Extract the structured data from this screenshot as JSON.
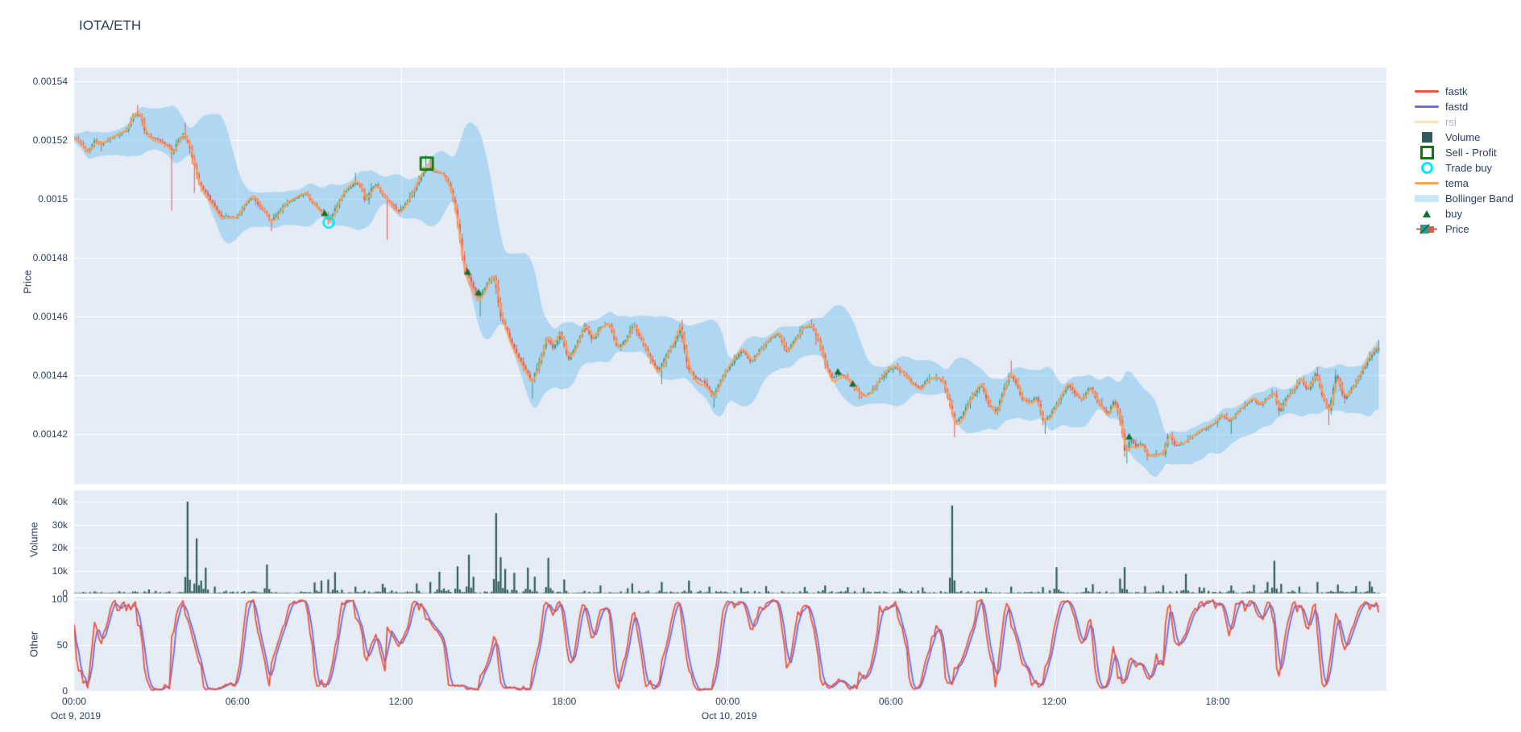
{
  "title": "IOTA/ETH",
  "colors": {
    "plot_bg": "#E5ECF6",
    "grid": "#FFFFFF",
    "text": "#2a3f5f",
    "candle_up": "#2F9E84",
    "candle_down": "#E4584B",
    "tema": "#FFA15A",
    "bollinger_fill": "rgba(126,195,238,0.52)",
    "volume_bar": "#2F5B5B",
    "fastk": "#EF553B",
    "fastd": "#6C6CE5",
    "buy_marker": "#15702B",
    "sell_profit_marker": "#067D06",
    "trade_buy_marker": "#00E8FF",
    "rsi_muted": "#FFE2B0"
  },
  "axes": {
    "price": {
      "label": "Price",
      "ticks": [
        {
          "v": 1540,
          "label": "0.00154"
        },
        {
          "v": 1520,
          "label": "0.00152"
        },
        {
          "v": 1500,
          "label": "0.0015"
        },
        {
          "v": 1480,
          "label": "0.00148"
        },
        {
          "v": 1460,
          "label": "0.00146"
        },
        {
          "v": 1440,
          "label": "0.00144"
        },
        {
          "v": 1420,
          "label": "0.00142"
        }
      ]
    },
    "volume": {
      "label": "Volume",
      "ticks": [
        {
          "v": 0,
          "label": "0"
        },
        {
          "v": 10000,
          "label": "10k"
        },
        {
          "v": 20000,
          "label": "20k"
        },
        {
          "v": 30000,
          "label": "30k"
        },
        {
          "v": 40000,
          "label": "40k"
        }
      ]
    },
    "other": {
      "label": "Other",
      "ticks": [
        {
          "v": 0,
          "label": "0"
        },
        {
          "v": 50,
          "label": "50"
        },
        {
          "v": 100,
          "label": "100"
        }
      ]
    },
    "x": {
      "ticks": [
        {
          "t": 0,
          "label": "00:00",
          "date": "Oct 9, 2019"
        },
        {
          "t": 6,
          "label": "06:00"
        },
        {
          "t": 12,
          "label": "12:00"
        },
        {
          "t": 18,
          "label": "18:00"
        },
        {
          "t": 24,
          "label": "00:00",
          "date": "Oct 10, 2019"
        },
        {
          "t": 30,
          "label": "06:00"
        },
        {
          "t": 36,
          "label": "12:00"
        },
        {
          "t": 42,
          "label": "18:00"
        }
      ]
    }
  },
  "legend": [
    {
      "label": "fastk",
      "swatch": "line",
      "color": "#EF553B"
    },
    {
      "label": "fastd",
      "swatch": "line",
      "color": "#6C6CE5"
    },
    {
      "label": "rsi",
      "swatch": "line",
      "color": "#FFE2B0",
      "muted": true
    },
    {
      "label": "Volume",
      "swatch": "square",
      "color": "#2F5B5B"
    },
    {
      "label": "Sell - Profit",
      "swatch": "square-open",
      "color": "#067D06"
    },
    {
      "label": "Trade buy",
      "swatch": "circle-open",
      "color": "#00E8FF"
    },
    {
      "label": "tema",
      "swatch": "line",
      "color": "#FFA15A"
    },
    {
      "label": "Bollinger Band",
      "swatch": "band",
      "color": "#C7E6F8"
    },
    {
      "label": "buy",
      "swatch": "triangle",
      "color": "#15702B"
    },
    {
      "label": "Price",
      "swatch": "candle",
      "color": "#2F9E84"
    }
  ],
  "chart_data": {
    "type": "candlestick-multi-panel",
    "pair": "IOTA/ETH",
    "timeframe_minutes": 5,
    "x_origin": "Oct 9, 2019 00:00",
    "x_range_hours": [
      0,
      47.92
    ],
    "price_unit_scale": 1e-06,
    "ylim_price": [
      1403,
      1546.5
    ],
    "ylim_volume": [
      0,
      45000
    ],
    "ylim_other": [
      0,
      105
    ],
    "panels": [
      "price",
      "volume",
      "other"
    ],
    "indicators": {
      "bollinger_period": 20,
      "bollinger_std": 2,
      "tema_period": 7,
      "stoch_k_period": 14,
      "stoch_d_period": 3
    },
    "price_anchors": [
      [
        0.0,
        1521
      ],
      [
        0.25,
        1519
      ],
      [
        0.5,
        1516
      ],
      [
        0.75,
        1520
      ],
      [
        1.0,
        1519
      ],
      [
        1.3,
        1521
      ],
      [
        1.6,
        1522
      ],
      [
        1.9,
        1524
      ],
      [
        2.2,
        1530
      ],
      [
        2.45,
        1529
      ],
      [
        2.6,
        1523
      ],
      [
        2.9,
        1521
      ],
      [
        3.2,
        1520
      ],
      [
        3.45,
        1518
      ],
      [
        3.6,
        1515
      ],
      [
        3.8,
        1519
      ],
      [
        4.0,
        1522
      ],
      [
        4.2,
        1519
      ],
      [
        4.4,
        1512
      ],
      [
        4.6,
        1505
      ],
      [
        4.8,
        1503
      ],
      [
        5.0,
        1500
      ],
      [
        5.2,
        1497
      ],
      [
        5.4,
        1494
      ],
      [
        5.6,
        1495
      ],
      [
        5.9,
        1494
      ],
      [
        6.1,
        1496
      ],
      [
        6.35,
        1499
      ],
      [
        6.55,
        1500
      ],
      [
        6.75,
        1498
      ],
      [
        7.0,
        1495
      ],
      [
        7.2,
        1492
      ],
      [
        7.45,
        1495
      ],
      [
        7.7,
        1497
      ],
      [
        7.95,
        1499
      ],
      [
        8.2,
        1500
      ],
      [
        8.5,
        1501
      ],
      [
        8.75,
        1498
      ],
      [
        9.0,
        1495
      ],
      [
        9.2,
        1494
      ],
      [
        9.35,
        1492
      ],
      [
        9.6,
        1497
      ],
      [
        9.9,
        1502
      ],
      [
        10.2,
        1505
      ],
      [
        10.35,
        1506
      ],
      [
        10.55,
        1504
      ],
      [
        10.7,
        1498
      ],
      [
        10.9,
        1503
      ],
      [
        11.1,
        1505
      ],
      [
        11.4,
        1501
      ],
      [
        11.7,
        1498
      ],
      [
        11.9,
        1495
      ],
      [
        12.15,
        1498
      ],
      [
        12.45,
        1502
      ],
      [
        12.7,
        1507
      ],
      [
        12.95,
        1511
      ],
      [
        13.2,
        1510
      ],
      [
        13.5,
        1509
      ],
      [
        13.8,
        1504
      ],
      [
        14.0,
        1496
      ],
      [
        14.15,
        1488
      ],
      [
        14.3,
        1478
      ],
      [
        14.45,
        1475
      ],
      [
        14.65,
        1471
      ],
      [
        14.85,
        1467
      ],
      [
        15.05,
        1470
      ],
      [
        15.25,
        1473
      ],
      [
        15.45,
        1474
      ],
      [
        15.65,
        1461
      ],
      [
        15.85,
        1456
      ],
      [
        16.1,
        1450
      ],
      [
        16.4,
        1445
      ],
      [
        16.8,
        1438
      ],
      [
        17.1,
        1445
      ],
      [
        17.35,
        1452
      ],
      [
        17.6,
        1448
      ],
      [
        17.85,
        1454
      ],
      [
        18.15,
        1445
      ],
      [
        18.45,
        1450
      ],
      [
        18.75,
        1457
      ],
      [
        19.05,
        1452
      ],
      [
        19.35,
        1457
      ],
      [
        19.65,
        1458
      ],
      [
        19.95,
        1449
      ],
      [
        20.25,
        1452
      ],
      [
        20.55,
        1458
      ],
      [
        20.85,
        1452
      ],
      [
        21.15,
        1446
      ],
      [
        21.45,
        1442
      ],
      [
        21.75,
        1448
      ],
      [
        22.05,
        1452
      ],
      [
        22.25,
        1457
      ],
      [
        22.55,
        1442
      ],
      [
        22.85,
        1438
      ],
      [
        23.15,
        1437
      ],
      [
        23.45,
        1432
      ],
      [
        23.7,
        1437
      ],
      [
        23.95,
        1441
      ],
      [
        24.25,
        1445
      ],
      [
        24.55,
        1448
      ],
      [
        24.85,
        1444
      ],
      [
        25.15,
        1448
      ],
      [
        25.5,
        1452
      ],
      [
        25.85,
        1454
      ],
      [
        26.15,
        1448
      ],
      [
        26.45,
        1452
      ],
      [
        26.75,
        1456
      ],
      [
        27.05,
        1457
      ],
      [
        27.35,
        1452
      ],
      [
        27.6,
        1443
      ],
      [
        27.85,
        1439
      ],
      [
        28.1,
        1441
      ],
      [
        28.4,
        1439
      ],
      [
        28.65,
        1436
      ],
      [
        28.95,
        1434
      ],
      [
        29.25,
        1435
      ],
      [
        29.55,
        1439
      ],
      [
        29.85,
        1442
      ],
      [
        30.15,
        1443
      ],
      [
        30.45,
        1441
      ],
      [
        30.75,
        1438
      ],
      [
        31.05,
        1436
      ],
      [
        31.35,
        1439
      ],
      [
        31.65,
        1440
      ],
      [
        31.9,
        1438
      ],
      [
        32.15,
        1430
      ],
      [
        32.35,
        1424
      ],
      [
        32.6,
        1426
      ],
      [
        32.85,
        1430
      ],
      [
        33.1,
        1434
      ],
      [
        33.35,
        1436
      ],
      [
        33.6,
        1430
      ],
      [
        33.85,
        1427
      ],
      [
        34.1,
        1434
      ],
      [
        34.35,
        1440
      ],
      [
        34.6,
        1437
      ],
      [
        34.85,
        1431
      ],
      [
        35.1,
        1431
      ],
      [
        35.35,
        1433
      ],
      [
        35.6,
        1425
      ],
      [
        35.9,
        1428
      ],
      [
        36.2,
        1433
      ],
      [
        36.5,
        1437
      ],
      [
        36.75,
        1434
      ],
      [
        37.0,
        1432
      ],
      [
        37.3,
        1436
      ],
      [
        37.65,
        1430
      ],
      [
        37.95,
        1427
      ],
      [
        38.2,
        1432
      ],
      [
        38.45,
        1424
      ],
      [
        38.6,
        1414
      ],
      [
        38.8,
        1419
      ],
      [
        39.0,
        1416
      ],
      [
        39.2,
        1417
      ],
      [
        39.45,
        1413
      ],
      [
        39.7,
        1414
      ],
      [
        40.0,
        1414
      ],
      [
        40.2,
        1421
      ],
      [
        40.45,
        1416
      ],
      [
        40.7,
        1417
      ],
      [
        41.0,
        1419
      ],
      [
        41.3,
        1421
      ],
      [
        41.6,
        1422
      ],
      [
        41.9,
        1424
      ],
      [
        42.15,
        1427
      ],
      [
        42.4,
        1424
      ],
      [
        42.7,
        1427
      ],
      [
        43.0,
        1430
      ],
      [
        43.3,
        1432
      ],
      [
        43.55,
        1430
      ],
      [
        43.8,
        1433
      ],
      [
        44.05,
        1435
      ],
      [
        44.25,
        1428
      ],
      [
        44.5,
        1432
      ],
      [
        44.8,
        1436
      ],
      [
        45.05,
        1439
      ],
      [
        45.3,
        1435
      ],
      [
        45.6,
        1441
      ],
      [
        45.85,
        1433
      ],
      [
        46.1,
        1428
      ],
      [
        46.35,
        1441
      ],
      [
        46.65,
        1432
      ],
      [
        46.9,
        1436
      ],
      [
        47.2,
        1440
      ],
      [
        47.5,
        1445
      ],
      [
        47.8,
        1448
      ],
      [
        47.92,
        1449
      ]
    ],
    "lower_wicks": [
      [
        3.6,
        1496
      ],
      [
        4.4,
        1502
      ],
      [
        7.25,
        1489
      ],
      [
        11.5,
        1486
      ],
      [
        14.9,
        1460
      ],
      [
        16.8,
        1432
      ],
      [
        21.6,
        1437
      ],
      [
        23.5,
        1429
      ],
      [
        28.8,
        1432
      ],
      [
        32.35,
        1419
      ],
      [
        35.65,
        1420
      ],
      [
        38.65,
        1410
      ],
      [
        39.45,
        1411
      ],
      [
        42.5,
        1420
      ],
      [
        46.1,
        1423
      ]
    ],
    "upper_wicks": [
      [
        2.3,
        1532
      ],
      [
        4.05,
        1526
      ],
      [
        10.35,
        1509
      ],
      [
        12.95,
        1515
      ],
      [
        13.05,
        1514
      ],
      [
        22.3,
        1459
      ],
      [
        27.1,
        1459
      ],
      [
        34.4,
        1445
      ],
      [
        45.65,
        1443
      ],
      [
        47.9,
        1452
      ]
    ],
    "volume_spikes": [
      [
        4.2,
        40000
      ],
      [
        4.5,
        24000
      ],
      [
        4.7,
        5600
      ],
      [
        4.85,
        11300
      ],
      [
        5.2,
        3000
      ],
      [
        7.1,
        12600
      ],
      [
        8.85,
        4800
      ],
      [
        9.05,
        5600
      ],
      [
        9.3,
        6100
      ],
      [
        9.6,
        9300
      ],
      [
        10.3,
        3000
      ],
      [
        11.3,
        4200
      ],
      [
        12.6,
        4400
      ],
      [
        13.1,
        5000
      ],
      [
        13.45,
        9500
      ],
      [
        14.05,
        11800
      ],
      [
        14.5,
        16900
      ],
      [
        14.7,
        7300
      ],
      [
        15.5,
        35000
      ],
      [
        15.65,
        15800
      ],
      [
        15.85,
        10700
      ],
      [
        16.2,
        9000
      ],
      [
        16.65,
        11300
      ],
      [
        16.95,
        7300
      ],
      [
        17.45,
        15500
      ],
      [
        18.0,
        6100
      ],
      [
        19.3,
        3500
      ],
      [
        20.5,
        4400
      ],
      [
        21.6,
        5000
      ],
      [
        22.6,
        5600
      ],
      [
        23.3,
        3000
      ],
      [
        24.5,
        2500
      ],
      [
        25.4,
        3200
      ],
      [
        26.8,
        2800
      ],
      [
        27.6,
        3500
      ],
      [
        29.0,
        2500
      ],
      [
        30.3,
        2200
      ],
      [
        31.2,
        2600
      ],
      [
        32.25,
        38300
      ],
      [
        33.5,
        2500
      ],
      [
        34.4,
        3000
      ],
      [
        35.6,
        2800
      ],
      [
        36.1,
        11500
      ],
      [
        37.2,
        2500
      ],
      [
        38.4,
        6500
      ],
      [
        38.6,
        11500
      ],
      [
        39.3,
        3200
      ],
      [
        40.0,
        3600
      ],
      [
        40.8,
        8600
      ],
      [
        41.5,
        2500
      ],
      [
        42.5,
        3500
      ],
      [
        43.3,
        3800
      ],
      [
        43.8,
        5000
      ],
      [
        44.05,
        14300
      ],
      [
        44.3,
        4200
      ],
      [
        45.0,
        3000
      ],
      [
        45.7,
        5000
      ],
      [
        46.4,
        3900
      ],
      [
        47.1,
        3200
      ],
      [
        47.6,
        5300
      ]
    ],
    "markers": {
      "buy": [
        [
          9.2,
          1495
        ],
        [
          14.45,
          1475
        ],
        [
          14.85,
          1468
        ],
        [
          28.05,
          1441
        ],
        [
          28.6,
          1437
        ],
        [
          38.75,
          1419
        ]
      ],
      "trade_buy": [
        [
          9.35,
          1492
        ]
      ],
      "sell_profit": [
        [
          12.95,
          1512
        ]
      ]
    }
  }
}
